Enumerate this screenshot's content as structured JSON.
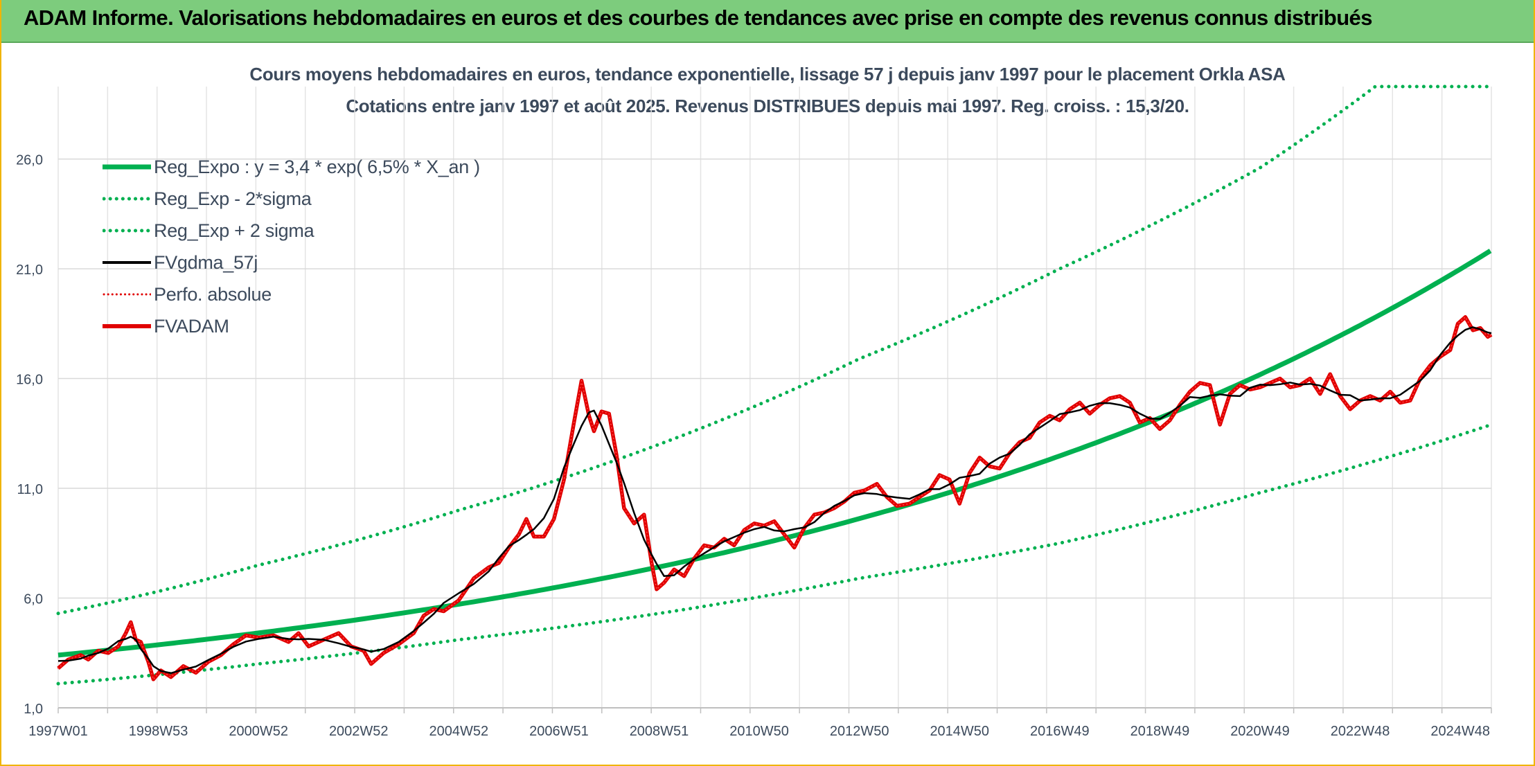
{
  "header": {
    "title": "ADAM Informe. Valorisations hebdomadaires en euros et des courbes de tendances avec prise en compte des revenus connus distribués"
  },
  "chart_data": {
    "type": "line",
    "title": "Cours moyens hebdomadaires en euros, tendance exponentielle, lissage 57 j depuis janv 1997 pour le placement Orkla ASA",
    "subtitle": "Cotations entre janv 1997 et août 2025. Revenus DISTRIBUES depuis mai 1997. Reg. croiss. : 15,3/20.",
    "xlabel": "",
    "ylabel": "",
    "x_range_years": [
      1997.0,
      2025.62
    ],
    "ylim": [
      1.0,
      29.3
    ],
    "y_ticks": [
      "1,0",
      "6,0",
      "11,0",
      "16,0",
      "21,0",
      "26,0"
    ],
    "y_tick_values": [
      1,
      6,
      11,
      16,
      21,
      26
    ],
    "x_tick_labels": [
      "1997W01",
      "1998W53",
      "2000W52",
      "2002W52",
      "2004W52",
      "2006W51",
      "2008W51",
      "2010W50",
      "2012W50",
      "2014W50",
      "2016W49",
      "2018W49",
      "2020W49",
      "2022W48",
      "2024W48"
    ],
    "x_tick_years": [
      1997.0,
      1999.0,
      2001.0,
      2003.0,
      2005.0,
      2007.0,
      2009.0,
      2011.0,
      2013.0,
      2015.0,
      2017.0,
      2019.0,
      2021.0,
      2023.0,
      2025.0
    ],
    "grid": true,
    "legend_position": "top-left",
    "regression": {
      "a": 3.4,
      "rate": 0.065
    },
    "series": [
      {
        "name": "Reg_Expo : y = 3,4 * exp( 6,5% *  X_an )",
        "color": "#00b050",
        "style": "solid"
      },
      {
        "name": "Reg_Exp - 2*sigma",
        "color": "#00b050",
        "style": "dotted",
        "values_at_x": [
          [
            1997.0,
            2.1
          ],
          [
            2001.0,
            3.0
          ],
          [
            2005.0,
            4.1
          ],
          [
            2009.0,
            5.3
          ],
          [
            2013.0,
            6.9
          ],
          [
            2017.0,
            8.5
          ],
          [
            2021.0,
            10.8
          ],
          [
            2025.62,
            13.9
          ]
        ]
      },
      {
        "name": "Reg_Exp + 2 sigma",
        "color": "#00b050",
        "style": "dotted",
        "values_at_x": [
          [
            1997.0,
            5.3
          ],
          [
            2001.0,
            7.5
          ],
          [
            2005.0,
            10.0
          ],
          [
            2009.0,
            13.0
          ],
          [
            2013.0,
            16.9
          ],
          [
            2017.0,
            21.0
          ],
          [
            2021.0,
            25.6
          ],
          [
            2023.3,
            29.3
          ],
          [
            2025.62,
            29.3
          ]
        ]
      },
      {
        "name": "FVgdma_57j",
        "color": "#000000",
        "style": "solid"
      },
      {
        "name": "Perfo. absolue",
        "color": "#e00000",
        "style": "dotted"
      },
      {
        "name": "FVADAM",
        "color": "#e00000",
        "style": "solid",
        "points": [
          [
            1997.0,
            2.8
          ],
          [
            1997.2,
            3.2
          ],
          [
            1997.45,
            3.4
          ],
          [
            1997.6,
            3.2
          ],
          [
            1997.8,
            3.6
          ],
          [
            1998.0,
            3.5
          ],
          [
            1998.2,
            3.8
          ],
          [
            1998.35,
            4.4
          ],
          [
            1998.45,
            4.9
          ],
          [
            1998.55,
            4.1
          ],
          [
            1998.65,
            4.0
          ],
          [
            1998.8,
            3.1
          ],
          [
            1998.9,
            2.3
          ],
          [
            1999.05,
            2.7
          ],
          [
            1999.25,
            2.4
          ],
          [
            1999.5,
            2.9
          ],
          [
            1999.75,
            2.6
          ],
          [
            2000.0,
            3.1
          ],
          [
            2000.25,
            3.4
          ],
          [
            2000.5,
            3.9
          ],
          [
            2000.75,
            4.3
          ],
          [
            2001.0,
            4.2
          ],
          [
            2001.3,
            4.3
          ],
          [
            2001.6,
            4.0
          ],
          [
            2001.8,
            4.4
          ],
          [
            2002.0,
            3.8
          ],
          [
            2002.3,
            4.1
          ],
          [
            2002.6,
            4.4
          ],
          [
            2002.85,
            3.8
          ],
          [
            2003.1,
            3.6
          ],
          [
            2003.25,
            3.0
          ],
          [
            2003.5,
            3.5
          ],
          [
            2003.8,
            3.9
          ],
          [
            2004.1,
            4.4
          ],
          [
            2004.3,
            5.2
          ],
          [
            2004.5,
            5.5
          ],
          [
            2004.7,
            5.4
          ],
          [
            2005.0,
            5.9
          ],
          [
            2005.3,
            6.9
          ],
          [
            2005.6,
            7.4
          ],
          [
            2005.8,
            7.6
          ],
          [
            2006.0,
            8.3
          ],
          [
            2006.2,
            8.9
          ],
          [
            2006.35,
            9.6
          ],
          [
            2006.5,
            8.8
          ],
          [
            2006.7,
            8.8
          ],
          [
            2006.9,
            9.6
          ],
          [
            2007.1,
            11.4
          ],
          [
            2007.3,
            14.0
          ],
          [
            2007.45,
            15.9
          ],
          [
            2007.6,
            14.3
          ],
          [
            2007.7,
            13.6
          ],
          [
            2007.85,
            14.5
          ],
          [
            2008.0,
            14.4
          ],
          [
            2008.15,
            12.5
          ],
          [
            2008.3,
            10.1
          ],
          [
            2008.5,
            9.4
          ],
          [
            2008.7,
            9.8
          ],
          [
            2008.85,
            7.6
          ],
          [
            2008.95,
            6.4
          ],
          [
            2009.1,
            6.7
          ],
          [
            2009.3,
            7.3
          ],
          [
            2009.5,
            7.0
          ],
          [
            2009.7,
            7.8
          ],
          [
            2009.9,
            8.4
          ],
          [
            2010.1,
            8.3
          ],
          [
            2010.3,
            8.7
          ],
          [
            2010.5,
            8.4
          ],
          [
            2010.7,
            9.1
          ],
          [
            2010.9,
            9.4
          ],
          [
            2011.1,
            9.3
          ],
          [
            2011.3,
            9.5
          ],
          [
            2011.5,
            8.9
          ],
          [
            2011.7,
            8.3
          ],
          [
            2011.9,
            9.2
          ],
          [
            2012.1,
            9.8
          ],
          [
            2012.3,
            9.9
          ],
          [
            2012.5,
            10.1
          ],
          [
            2012.7,
            10.4
          ],
          [
            2012.9,
            10.8
          ],
          [
            2013.1,
            10.9
          ],
          [
            2013.35,
            11.2
          ],
          [
            2013.55,
            10.6
          ],
          [
            2013.75,
            10.2
          ],
          [
            2014.0,
            10.3
          ],
          [
            2014.2,
            10.6
          ],
          [
            2014.4,
            10.9
          ],
          [
            2014.6,
            11.6
          ],
          [
            2014.8,
            11.4
          ],
          [
            2015.0,
            10.3
          ],
          [
            2015.2,
            11.7
          ],
          [
            2015.4,
            12.4
          ],
          [
            2015.6,
            12.0
          ],
          [
            2015.8,
            11.9
          ],
          [
            2016.0,
            12.6
          ],
          [
            2016.2,
            13.1
          ],
          [
            2016.4,
            13.3
          ],
          [
            2016.6,
            14.0
          ],
          [
            2016.8,
            14.3
          ],
          [
            2017.0,
            14.1
          ],
          [
            2017.2,
            14.6
          ],
          [
            2017.4,
            14.9
          ],
          [
            2017.6,
            14.4
          ],
          [
            2017.8,
            14.8
          ],
          [
            2018.0,
            15.1
          ],
          [
            2018.2,
            15.2
          ],
          [
            2018.4,
            14.9
          ],
          [
            2018.6,
            14.0
          ],
          [
            2018.8,
            14.2
          ],
          [
            2019.0,
            13.7
          ],
          [
            2019.2,
            14.1
          ],
          [
            2019.4,
            14.8
          ],
          [
            2019.6,
            15.4
          ],
          [
            2019.8,
            15.8
          ],
          [
            2020.0,
            15.7
          ],
          [
            2020.2,
            13.9
          ],
          [
            2020.4,
            15.3
          ],
          [
            2020.6,
            15.7
          ],
          [
            2020.8,
            15.5
          ],
          [
            2021.0,
            15.6
          ],
          [
            2021.2,
            15.8
          ],
          [
            2021.4,
            16.0
          ],
          [
            2021.6,
            15.6
          ],
          [
            2021.8,
            15.7
          ],
          [
            2022.0,
            16.0
          ],
          [
            2022.2,
            15.3
          ],
          [
            2022.4,
            16.2
          ],
          [
            2022.6,
            15.2
          ],
          [
            2022.8,
            14.6
          ],
          [
            2023.0,
            15.0
          ],
          [
            2023.2,
            15.2
          ],
          [
            2023.4,
            15.0
          ],
          [
            2023.6,
            15.4
          ],
          [
            2023.8,
            14.9
          ],
          [
            2024.0,
            15.0
          ],
          [
            2024.2,
            16.0
          ],
          [
            2024.4,
            16.6
          ],
          [
            2024.6,
            17.0
          ],
          [
            2024.8,
            17.3
          ],
          [
            2024.95,
            18.5
          ],
          [
            2025.1,
            18.8
          ],
          [
            2025.25,
            18.2
          ],
          [
            2025.4,
            18.3
          ],
          [
            2025.55,
            17.9
          ],
          [
            2025.62,
            18.0
          ]
        ]
      }
    ]
  }
}
